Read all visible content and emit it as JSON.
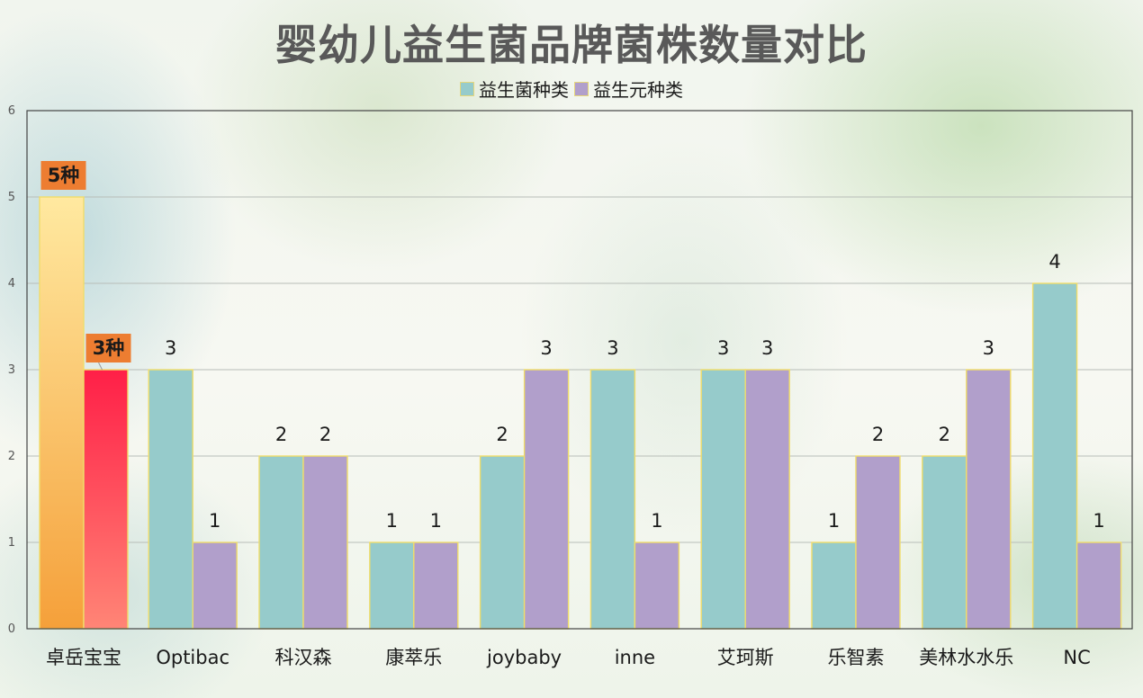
{
  "chart_data": {
    "type": "bar",
    "title": "婴幼儿益生菌品牌菌株数量对比",
    "categories": [
      "卓岳宝宝",
      "Optibac",
      "科汉森",
      "康萃乐",
      "joybaby",
      "inne",
      "艾珂斯",
      "乐智素",
      "美林水水乐",
      "NC"
    ],
    "series": [
      {
        "name": "益生菌种类",
        "values": [
          5,
          3,
          2,
          1,
          2,
          3,
          3,
          1,
          2,
          4
        ],
        "color": "#96cbcb"
      },
      {
        "name": "益生元种类",
        "values": [
          3,
          1,
          2,
          1,
          3,
          1,
          3,
          2,
          3,
          1
        ],
        "color": "#b19fcb"
      }
    ],
    "highlight": {
      "category_index": 0,
      "labels": [
        "5种",
        "3种"
      ],
      "label_bg": "#ed7d31"
    },
    "ylim": [
      0,
      6
    ],
    "yticks": [
      0,
      1,
      2,
      3,
      4,
      5,
      6
    ],
    "grid": true,
    "legend_position": "top-center",
    "xlabel": "",
    "ylabel": ""
  }
}
